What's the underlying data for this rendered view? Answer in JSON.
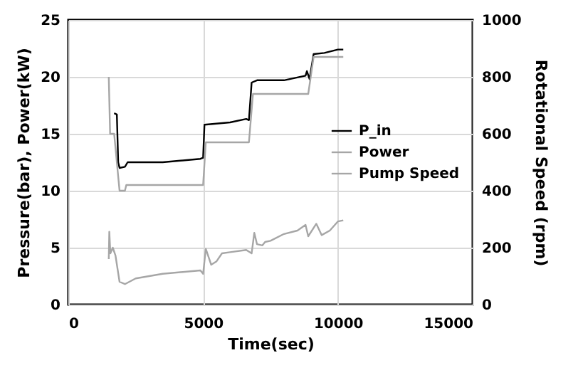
{
  "chart_data": {
    "type": "line",
    "xlabel": "Time(sec)",
    "ylabel": "Pressure(bar), Power(kW)",
    "y2label": "Rotational Speed (rpm)",
    "xlim": [
      0,
      15000
    ],
    "xticks": [
      0,
      5000,
      10000,
      15000
    ],
    "ylim": [
      0,
      25
    ],
    "yticks": [
      0,
      5,
      10,
      15,
      20,
      25
    ],
    "y2lim": [
      0,
      1000
    ],
    "y2ticks": [
      0,
      200,
      400,
      600,
      800,
      1000
    ],
    "grid": true,
    "legend": "right",
    "line_style": "solid",
    "marker": "none",
    "series": [
      {
        "name": "P_in",
        "color": "#000000",
        "x": [
          1700,
          1800,
          1850,
          1900,
          2100,
          2200,
          3500,
          4900,
          5000,
          5050,
          6000,
          6600,
          6700,
          6800,
          7000,
          8000,
          8800,
          8850,
          8950,
          9100,
          9500,
          10000,
          10200
        ],
        "values": [
          16.8,
          16.7,
          12.5,
          12.0,
          12.1,
          12.5,
          12.5,
          12.8,
          12.9,
          15.8,
          16.0,
          16.3,
          16.2,
          19.5,
          19.7,
          19.7,
          20.1,
          20.5,
          19.8,
          22.0,
          22.1,
          22.4,
          22.4
        ]
      },
      {
        "name": "Power",
        "color": "#a6a6a6",
        "x": [
          1500,
          1520,
          1560,
          1650,
          1750,
          1900,
          2100,
          2500,
          3500,
          4900,
          5000,
          5100,
          5200,
          5300,
          5500,
          5700,
          6000,
          6600,
          6800,
          6900,
          7000,
          7200,
          7300,
          7500,
          8000,
          8500,
          8800,
          8900,
          9200,
          9400,
          9700,
          10000,
          10200
        ],
        "values": [
          4.0,
          6.4,
          4.5,
          5.0,
          4.3,
          2.0,
          1.8,
          2.3,
          2.7,
          3.0,
          2.7,
          4.9,
          4.2,
          3.5,
          3.8,
          4.5,
          4.6,
          4.8,
          4.5,
          6.3,
          5.3,
          5.2,
          5.5,
          5.6,
          6.2,
          6.5,
          7.0,
          6.0,
          7.1,
          6.1,
          6.5,
          7.3,
          7.4
        ]
      },
      {
        "name": "Pump Speed",
        "color": "#a6a6a6",
        "axis": "y2",
        "x": [
          1500,
          1550,
          1700,
          1900,
          2100,
          2150,
          5000,
          5100,
          6700,
          6850,
          8900,
          9100,
          10200
        ],
        "values": [
          800,
          600,
          600,
          400,
          400,
          420,
          420,
          570,
          570,
          740,
          740,
          870,
          870
        ]
      }
    ]
  }
}
